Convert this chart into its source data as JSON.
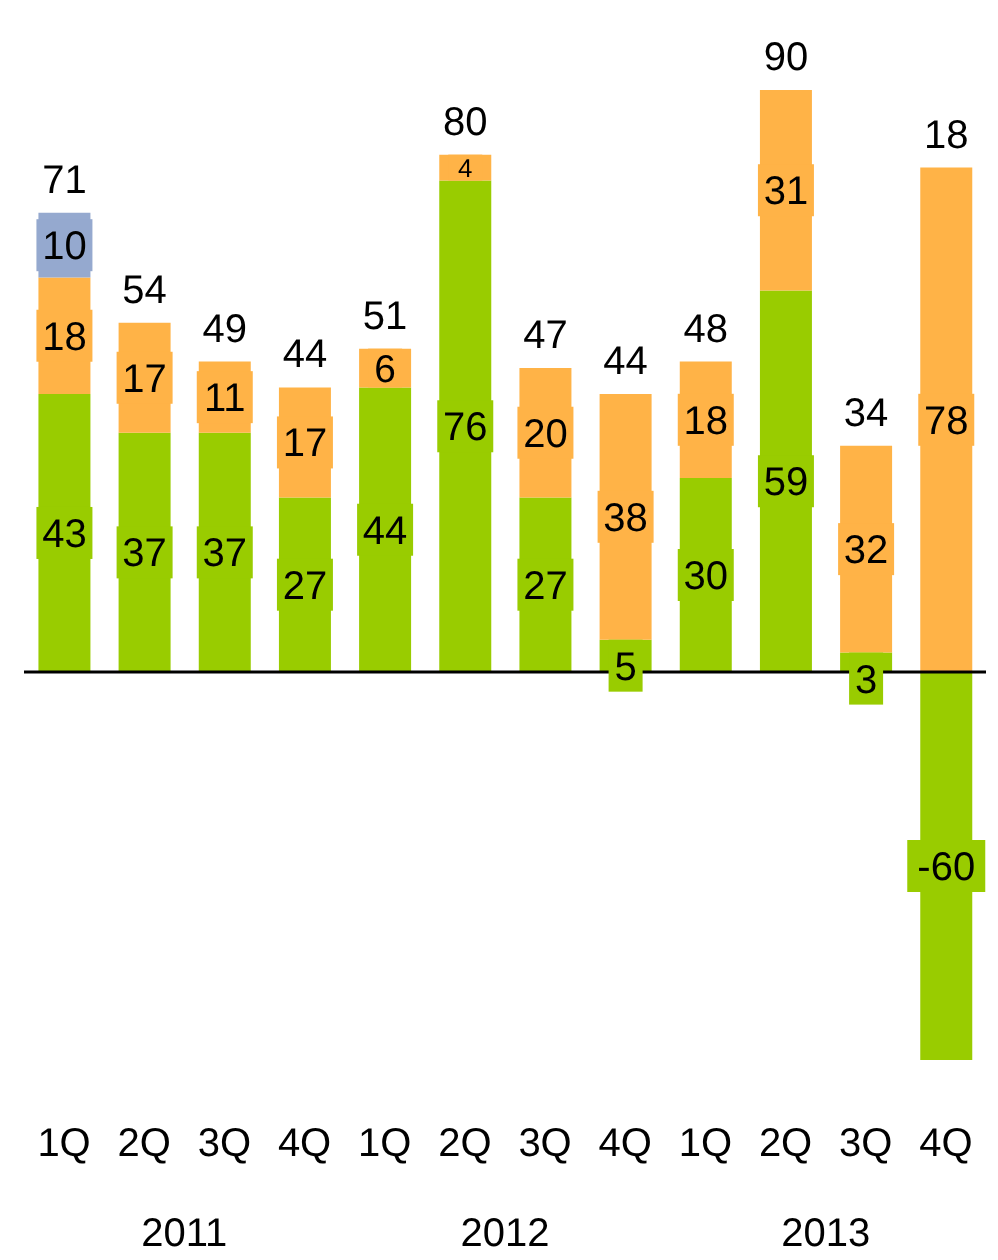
{
  "chart_data": {
    "type": "bar",
    "stacked": true,
    "categories": [
      "1Q",
      "2Q",
      "3Q",
      "4Q",
      "1Q",
      "2Q",
      "3Q",
      "4Q",
      "1Q",
      "2Q",
      "3Q",
      "4Q"
    ],
    "series": [
      {
        "color": "#99cc00",
        "values": [
          43,
          37,
          37,
          27,
          44,
          76,
          27,
          5,
          30,
          59,
          3,
          -60
        ]
      },
      {
        "color": "#ffb347",
        "values": [
          18,
          17,
          11,
          17,
          6,
          4,
          20,
          38,
          18,
          31,
          32,
          78
        ]
      },
      {
        "color": "#95a9cf",
        "values": [
          10,
          null,
          null,
          null,
          null,
          null,
          null,
          null,
          null,
          null,
          null,
          null
        ]
      }
    ],
    "totals": [
      "71",
      "54",
      "49",
      "44",
      "51",
      "80",
      "47",
      "44",
      "48",
      "90",
      "34",
      "18"
    ],
    "data_labels": true,
    "annotations": [
      "2011",
      "2012",
      "2013"
    ],
    "ref_lines": [
      {
        "axis": "y",
        "value": 0,
        "color": "#000000"
      }
    ],
    "legend": false,
    "grid": false
  }
}
